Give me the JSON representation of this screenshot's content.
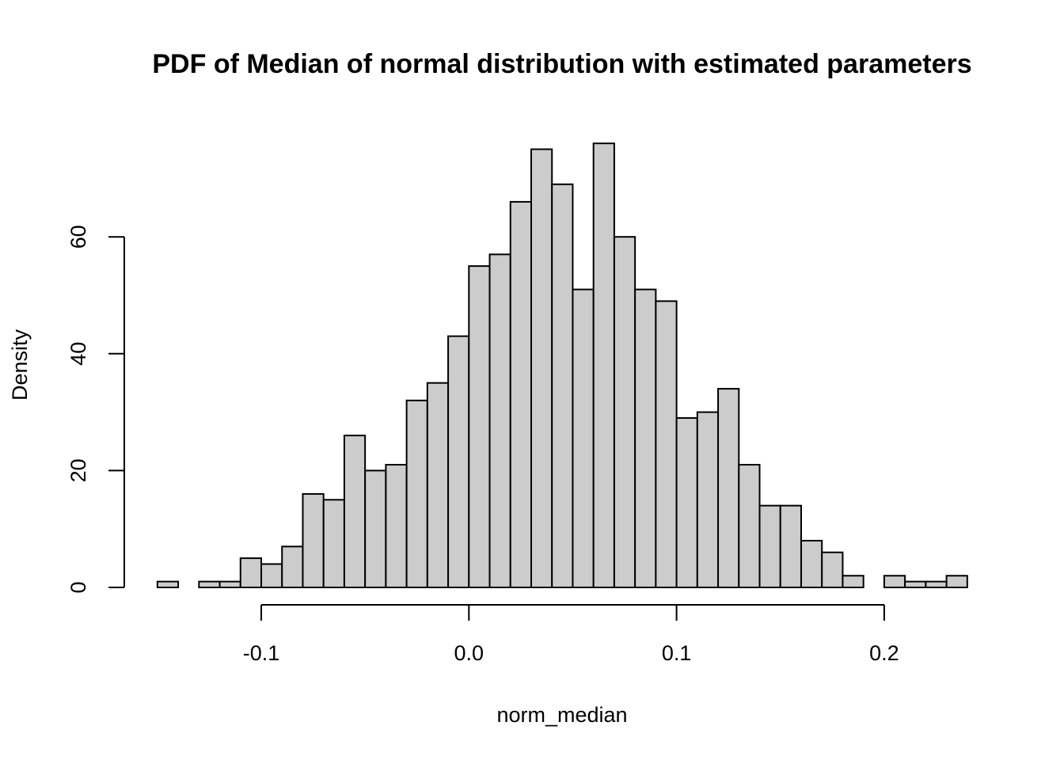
{
  "chart_data": {
    "type": "bar",
    "title": "PDF of Median of normal distribution with estimated parameters",
    "xlabel": "norm_median",
    "ylabel": "Density",
    "bin_width": 0.01,
    "bin_starts": [
      -0.15,
      -0.14,
      -0.13,
      -0.12,
      -0.11,
      -0.1,
      -0.09,
      -0.08,
      -0.07,
      -0.06,
      -0.05,
      -0.04,
      -0.03,
      -0.02,
      -0.01,
      0.0,
      0.01,
      0.02,
      0.03,
      0.04,
      0.05,
      0.06,
      0.07,
      0.08,
      0.09,
      0.1,
      0.11,
      0.12,
      0.13,
      0.14,
      0.15,
      0.16,
      0.17,
      0.18,
      0.19,
      0.2,
      0.21,
      0.22,
      0.23
    ],
    "values": [
      1,
      0,
      1,
      1,
      5,
      4,
      7,
      16,
      15,
      26,
      20,
      21,
      32,
      35,
      43,
      55,
      57,
      66,
      75,
      69,
      51,
      76,
      60,
      51,
      49,
      29,
      30,
      34,
      21,
      14,
      14,
      8,
      6,
      2,
      0,
      2,
      1,
      1,
      2
    ],
    "xlim": [
      -0.1,
      0.2
    ],
    "ylim": [
      0,
      60
    ],
    "x_ticks": [
      -0.1,
      0.0,
      0.1,
      0.2
    ],
    "x_tick_labels": [
      "-0.1",
      "0.0",
      "0.1",
      "0.2"
    ],
    "y_ticks": [
      0,
      20,
      40,
      60
    ],
    "y_tick_labels": [
      "0",
      "20",
      "40",
      "60"
    ],
    "bar_fill": "#cccccc",
    "bar_stroke": "#000000",
    "grid": false,
    "legend": "none"
  }
}
